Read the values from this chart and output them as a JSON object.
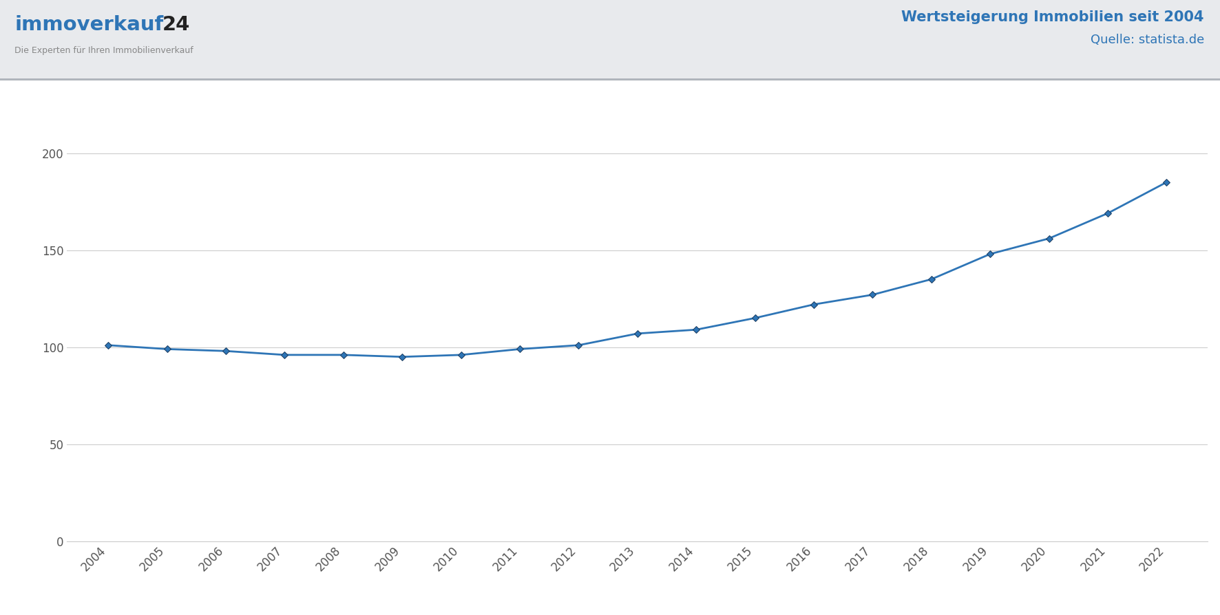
{
  "years": [
    2004,
    2005,
    2006,
    2007,
    2008,
    2009,
    2010,
    2011,
    2012,
    2013,
    2014,
    2015,
    2016,
    2017,
    2018,
    2019,
    2020,
    2021,
    2022
  ],
  "values": [
    101,
    99,
    98,
    96,
    96,
    95,
    96,
    99,
    101,
    107,
    109,
    115,
    122,
    127,
    135,
    148,
    156,
    169,
    185
  ],
  "line_color": "#2e75b6",
  "marker_color": "#2e75b6",
  "marker_edge_color": "#1a3a5c",
  "header_bg_color": "#e8eaed",
  "plot_bg_color": "#ffffff",
  "grid_color": "#cccccc",
  "title_text": "Wertsteigerung Immobilien seit 2004",
  "subtitle_text": "Quelle: statista.de",
  "title_color": "#2e75b6",
  "logo_subtitle": "Die Experten für Ihren Immobilienverkauf",
  "logo_blue": "#2e75b6",
  "logo_gray": "#888888",
  "logo_dark": "#222222",
  "ylim": [
    0,
    225
  ],
  "yticks": [
    0,
    50,
    100,
    150,
    200
  ],
  "line_width": 2.0,
  "marker_size": 5.5,
  "tick_label_color": "#555555",
  "tick_label_size": 12
}
